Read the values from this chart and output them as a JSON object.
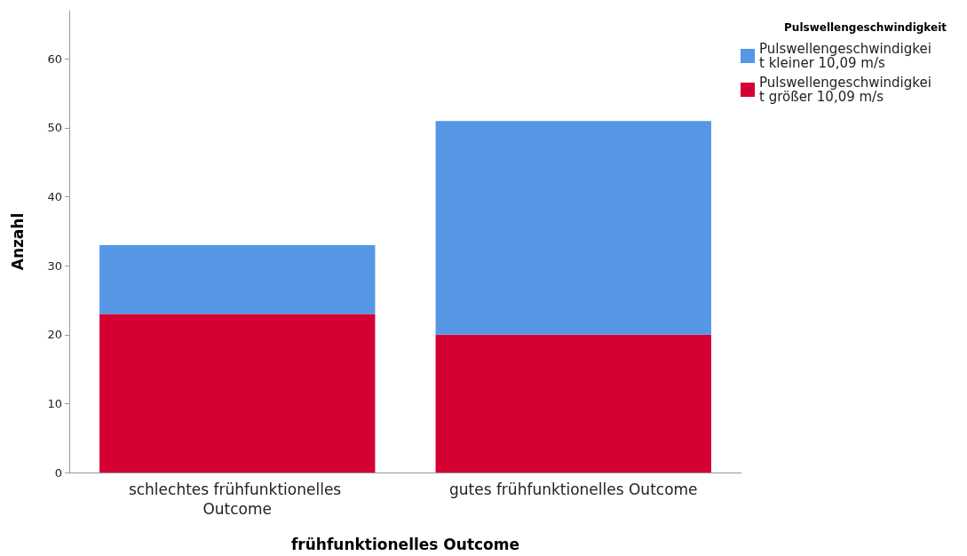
{
  "chart_data": {
    "type": "bar",
    "stacked": true,
    "xlabel": "frühfunktionelles Outcome",
    "ylabel": "Anzahl",
    "legend_title": "Pulswellengeschwindigkeit",
    "legend": "top right",
    "categories": [
      "schlechtes frühfunktionelles Outcome",
      "gutes frühfunktionelles Outcome"
    ],
    "series": [
      {
        "name": "Pulswellengeschwindigkeit größer 10,09 m/s",
        "color": "#d50032",
        "values": [
          23,
          20
        ]
      },
      {
        "name": "Pulswellengeschwindigkeit kleiner 10,09 m/s",
        "color": "#5597e5",
        "values": [
          10,
          31
        ]
      }
    ],
    "ylim": [
      0,
      67
    ],
    "yticks": [
      0,
      10,
      20,
      30,
      40,
      50,
      60
    ],
    "grid": false
  }
}
